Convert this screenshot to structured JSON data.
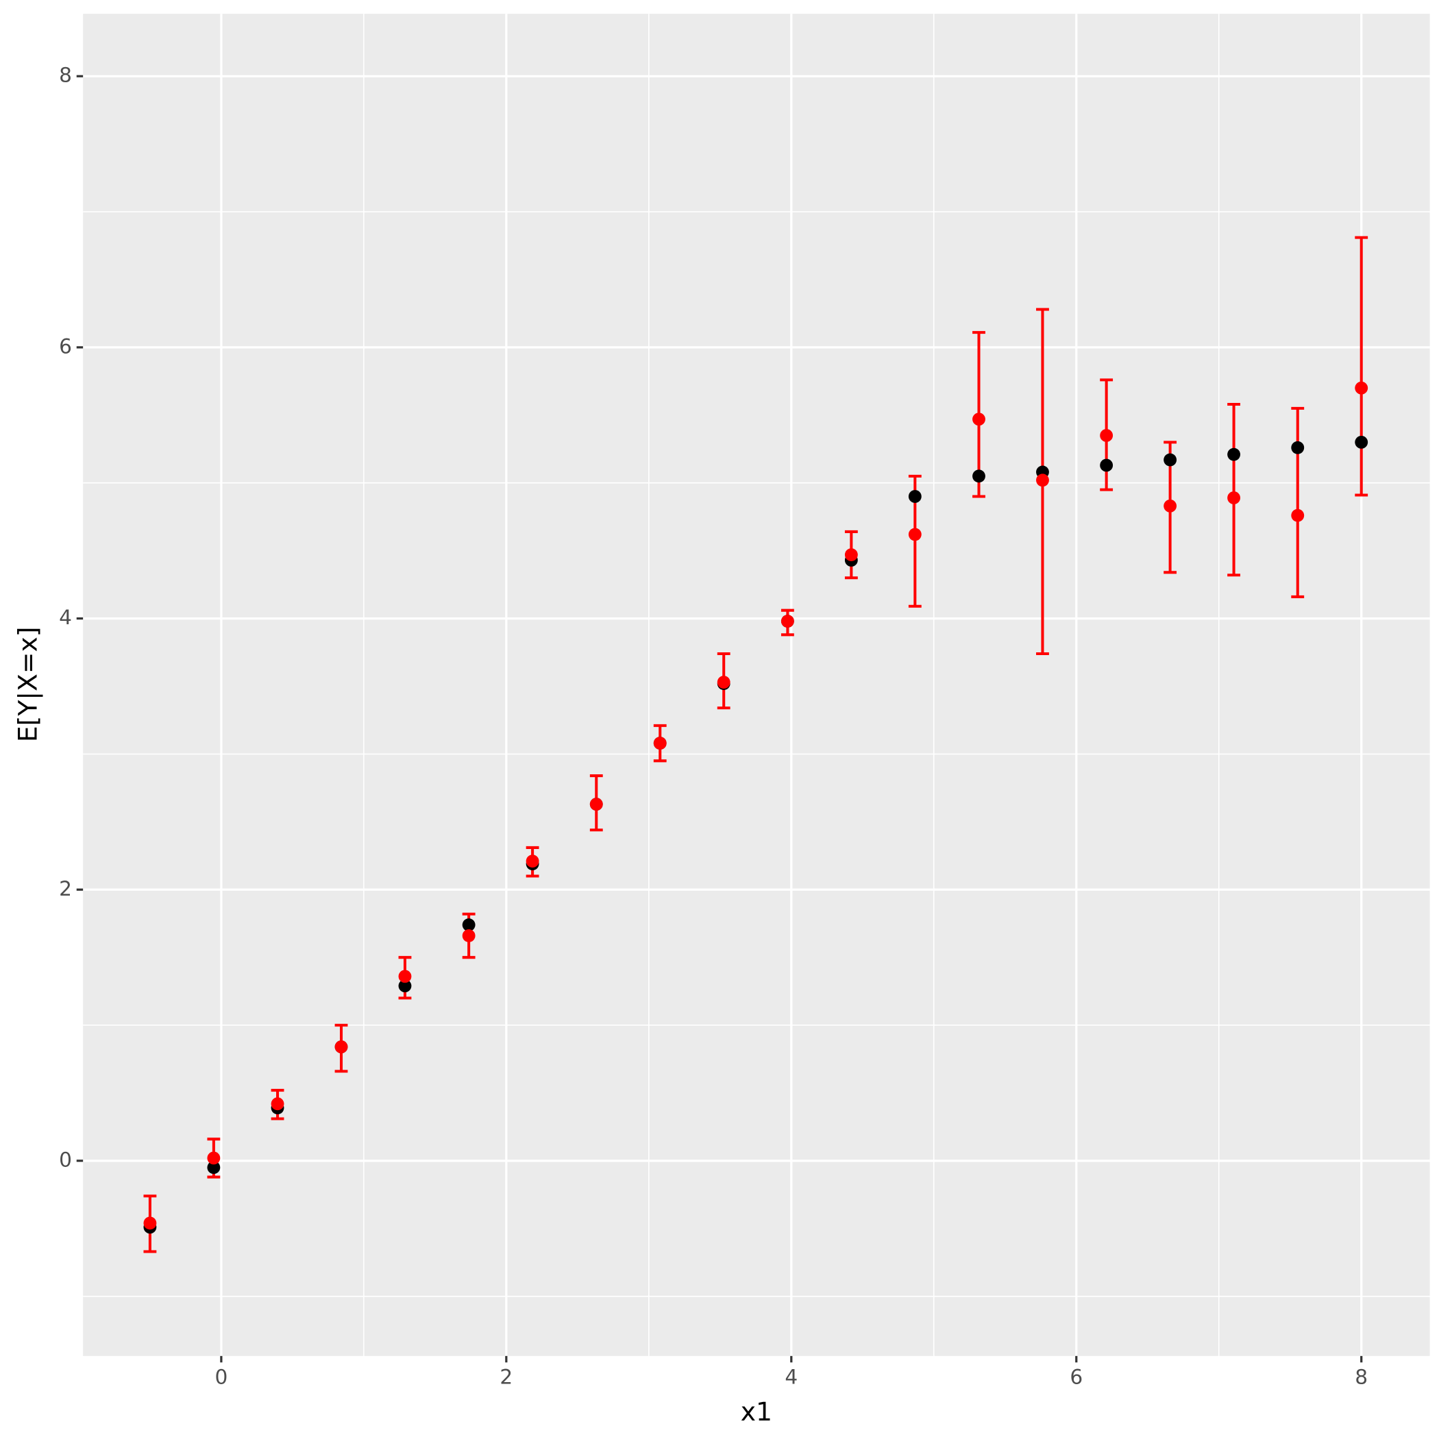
{
  "chart_data": {
    "type": "scatter",
    "xlabel": "x1",
    "ylabel": "E[Y|X=x]",
    "xlim": [
      -0.97,
      8.48
    ],
    "ylim": [
      -1.44,
      8.46
    ],
    "xticks": [
      0,
      2,
      4,
      6,
      8
    ],
    "yticks": [
      0,
      2,
      4,
      6,
      8
    ],
    "x_minor_ticks": [
      1,
      3,
      5,
      7
    ],
    "y_minor_ticks": [
      -1,
      1,
      3,
      5,
      7
    ],
    "grid": true,
    "x": [
      -0.5,
      -0.053,
      0.395,
      0.842,
      1.289,
      1.737,
      2.184,
      2.632,
      3.079,
      3.526,
      3.974,
      4.421,
      4.868,
      5.316,
      5.763,
      6.211,
      6.658,
      7.105,
      7.553,
      8.0
    ],
    "series": [
      {
        "color": "#000000",
        "values": [
          -0.49,
          -0.05,
          0.39,
          0.84,
          1.29,
          1.74,
          2.19,
          2.63,
          3.08,
          3.52,
          3.98,
          4.43,
          4.9,
          5.05,
          5.08,
          5.13,
          5.17,
          5.21,
          5.26,
          5.3
        ]
      },
      {
        "color": "#ff0000",
        "values": [
          -0.46,
          0.02,
          0.42,
          0.84,
          1.36,
          1.66,
          2.21,
          2.63,
          3.08,
          3.53,
          3.98,
          4.47,
          4.62,
          5.47,
          5.02,
          5.35,
          4.83,
          4.89,
          4.76,
          5.7
        ],
        "lower": [
          -0.67,
          -0.12,
          0.31,
          0.66,
          1.2,
          1.5,
          2.1,
          2.44,
          2.95,
          3.34,
          3.88,
          4.3,
          4.09,
          4.9,
          3.74,
          4.95,
          4.34,
          4.32,
          4.16,
          4.91
        ],
        "upper": [
          -0.26,
          0.16,
          0.52,
          1.0,
          1.5,
          1.82,
          2.31,
          2.84,
          3.21,
          3.74,
          4.06,
          4.64,
          5.05,
          6.11,
          6.28,
          5.76,
          5.3,
          5.58,
          5.55,
          6.81
        ]
      }
    ]
  }
}
